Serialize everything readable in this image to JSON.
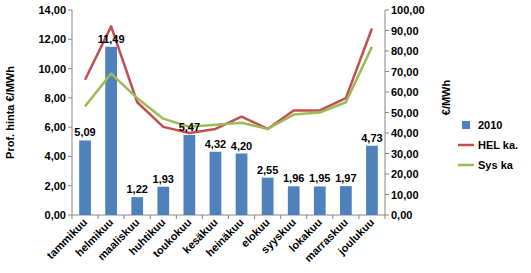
{
  "chart_data": {
    "type": "bar",
    "categories": [
      "tammikuu",
      "helmikuu",
      "maaliskuu",
      "huhtikuu",
      "toukokuu",
      "kesäkuu",
      "heinäkuu",
      "elokuu",
      "syyskuu",
      "lokakuu",
      "marraskuu",
      "joulukuu"
    ],
    "y_label": "Prof. hinta €/MWh",
    "y2_label": "€/MWh",
    "ylim": [
      0,
      14
    ],
    "yticks": [
      {
        "value": 0,
        "label": "0,00"
      },
      {
        "value": 2,
        "label": "2,00"
      },
      {
        "value": 4,
        "label": "4,00"
      },
      {
        "value": 6,
        "label": "6,00"
      },
      {
        "value": 8,
        "label": "8,00"
      },
      {
        "value": 10,
        "label": "10,00"
      },
      {
        "value": 12,
        "label": "12,00"
      },
      {
        "value": 14,
        "label": "14,00"
      }
    ],
    "y2lim": [
      0,
      100
    ],
    "y2ticks": [
      {
        "value": 0,
        "label": "0,00"
      },
      {
        "value": 10,
        "label": "10,00"
      },
      {
        "value": 20,
        "label": "20,00"
      },
      {
        "value": 30,
        "label": "30,00"
      },
      {
        "value": 40,
        "label": "40,00"
      },
      {
        "value": 50,
        "label": "50,00"
      },
      {
        "value": 60,
        "label": "60,00"
      },
      {
        "value": 70,
        "label": "70,00"
      },
      {
        "value": 80,
        "label": "80,00"
      },
      {
        "value": 90,
        "label": "90,00"
      },
      {
        "value": 100,
        "label": "100,00"
      }
    ],
    "grid": false,
    "legend": "right",
    "series": [
      {
        "name": "2010",
        "type": "bar",
        "color": "#4f81bd",
        "data_labels": true,
        "values": [
          5.09,
          11.49,
          1.22,
          1.93,
          5.47,
          4.32,
          4.2,
          2.55,
          1.96,
          1.95,
          1.97,
          4.73
        ],
        "value_labels": [
          "5,09",
          "11,49",
          "1,22",
          "1,93",
          "5,47",
          "4,32",
          "4,20",
          "2,55",
          "1,96",
          "1,95",
          "1,97",
          "4,73"
        ]
      },
      {
        "name": "HEL ka.",
        "type": "line",
        "axis": "y2",
        "color": "#c0504d",
        "values": [
          66,
          92,
          55,
          43,
          40,
          42,
          48,
          42,
          51,
          51,
          57,
          91
        ]
      },
      {
        "name": "Sys ka",
        "type": "line",
        "axis": "y2",
        "color": "#9bbb59",
        "values": [
          53,
          69,
          57,
          47,
          43,
          44,
          45,
          42,
          49,
          50,
          55,
          82
        ]
      }
    ]
  }
}
